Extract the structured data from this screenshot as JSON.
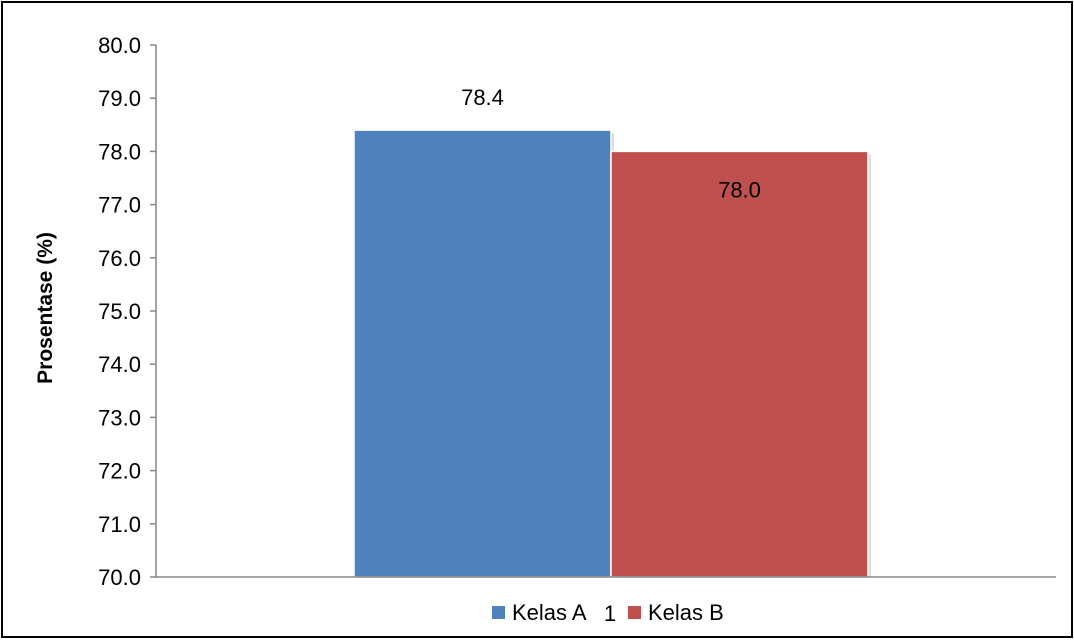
{
  "chart_data": {
    "type": "bar",
    "categories": [
      "1"
    ],
    "series": [
      {
        "name": "Kelas A",
        "values": [
          78.4
        ],
        "color": "#4F81BD"
      },
      {
        "name": "Kelas B",
        "values": [
          78.0
        ],
        "color": "#C0504D"
      }
    ],
    "data_labels": [
      "78.4",
      "78.0"
    ],
    "ylabel": "Prosentase (%)",
    "xlabel": "",
    "ylim": [
      70,
      80
    ],
    "y_ticks": [
      "70.0",
      "71.0",
      "72.0",
      "73.0",
      "74.0",
      "75.0",
      "76.0",
      "77.0",
      "78.0",
      "79.0",
      "80.0"
    ],
    "legend_position": "bottom",
    "grid": false
  }
}
